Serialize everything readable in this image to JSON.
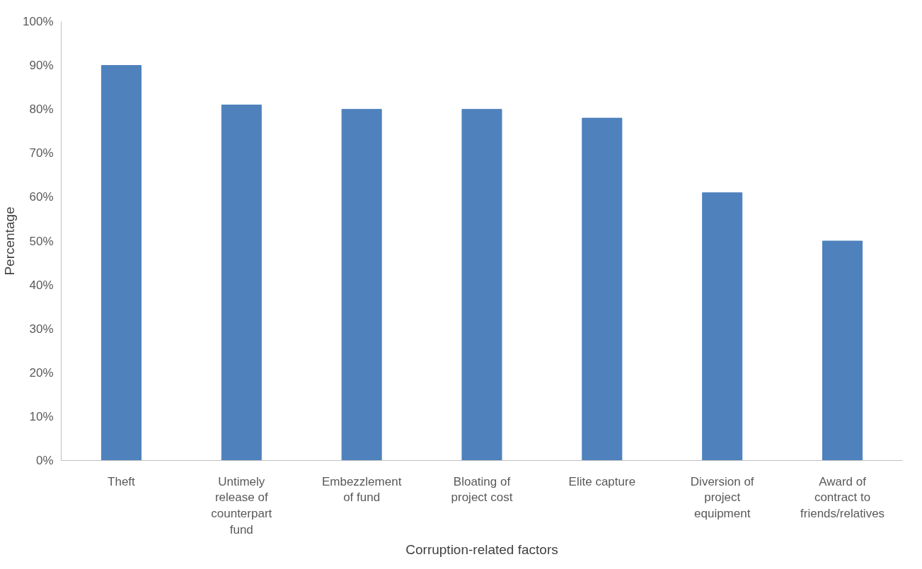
{
  "chart_data": {
    "type": "bar",
    "xlabel": "Corruption-related factors",
    "ylabel": "Percentage",
    "categories": [
      "Theft",
      "Untimely release of counterpart fund",
      "Embezzlement of fund",
      "Bloating of project cost",
      "Elite capture",
      "Diversion of project equipment",
      "Award of contract to friends/relatives"
    ],
    "values": [
      90,
      81,
      80,
      80,
      78,
      61,
      50
    ],
    "color": "#4f81bd",
    "ylim": [
      0,
      100
    ],
    "yticks": [
      {
        "value": 0,
        "label": "0%"
      },
      {
        "value": 10,
        "label": "10%"
      },
      {
        "value": 20,
        "label": "20%"
      },
      {
        "value": 30,
        "label": "30%"
      },
      {
        "value": 40,
        "label": "40%"
      },
      {
        "value": 50,
        "label": "50%"
      },
      {
        "value": 60,
        "label": "60%"
      },
      {
        "value": 70,
        "label": "70%"
      },
      {
        "value": 80,
        "label": "80%"
      },
      {
        "value": 90,
        "label": "90%"
      },
      {
        "value": 100,
        "label": "100%"
      }
    ],
    "grid": false
  }
}
